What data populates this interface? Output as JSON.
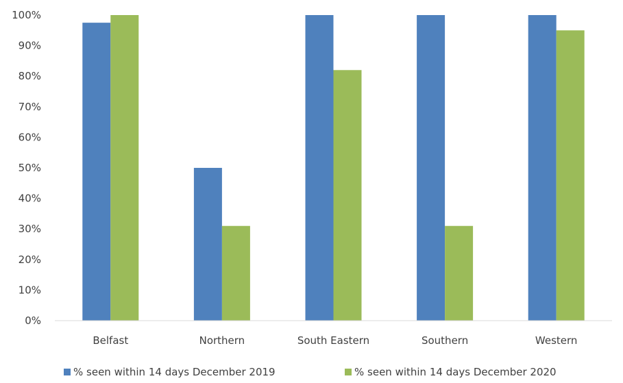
{
  "chart_data": {
    "type": "bar",
    "categories": [
      "Belfast",
      "Northern",
      "South Eastern",
      "Southern",
      "Western"
    ],
    "series": [
      {
        "name": "% seen within 14 days December 2019",
        "color": "#4f81bd",
        "values": [
          97.5,
          50,
          100,
          100,
          100
        ]
      },
      {
        "name": "% seen within 14 days December 2020",
        "color": "#9bbb59",
        "values": [
          100,
          31,
          82,
          31,
          95
        ]
      }
    ],
    "ylim": [
      0,
      100
    ],
    "yticks": [
      "0%",
      "10%",
      "20%",
      "30%",
      "40%",
      "50%",
      "60%",
      "70%",
      "80%",
      "90%",
      "100%"
    ],
    "grid": false,
    "legend_position": "bottom"
  }
}
